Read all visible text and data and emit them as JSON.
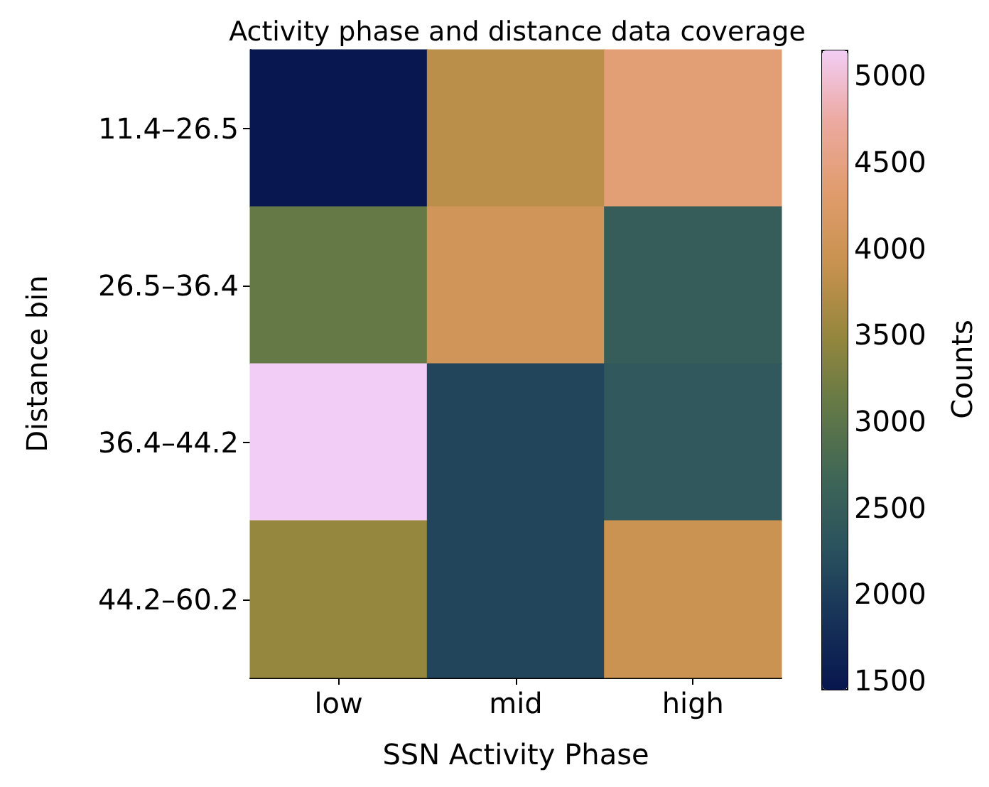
{
  "chart_data": {
    "type": "heatmap",
    "title": "Activity phase and distance data coverage",
    "xlabel": "SSN Activity Phase",
    "ylabel": "Distance bin",
    "clabel": "Counts",
    "categories": [
      "low",
      "mid",
      "high"
    ],
    "y_categories": [
      "11.4–26.5",
      "26.5–36.4",
      "36.4–44.2",
      "44.2–60.2"
    ],
    "cells": [
      [
        1450,
        3800,
        4400
      ],
      [
        3100,
        4050,
        2500
      ],
      [
        5150,
        2100,
        2400
      ],
      [
        3500,
        2100,
        3950
      ]
    ],
    "clim": [
      1450,
      5150
    ],
    "cticks": [
      1500,
      2000,
      2500,
      3000,
      3500,
      4000,
      4500,
      5000
    ]
  }
}
